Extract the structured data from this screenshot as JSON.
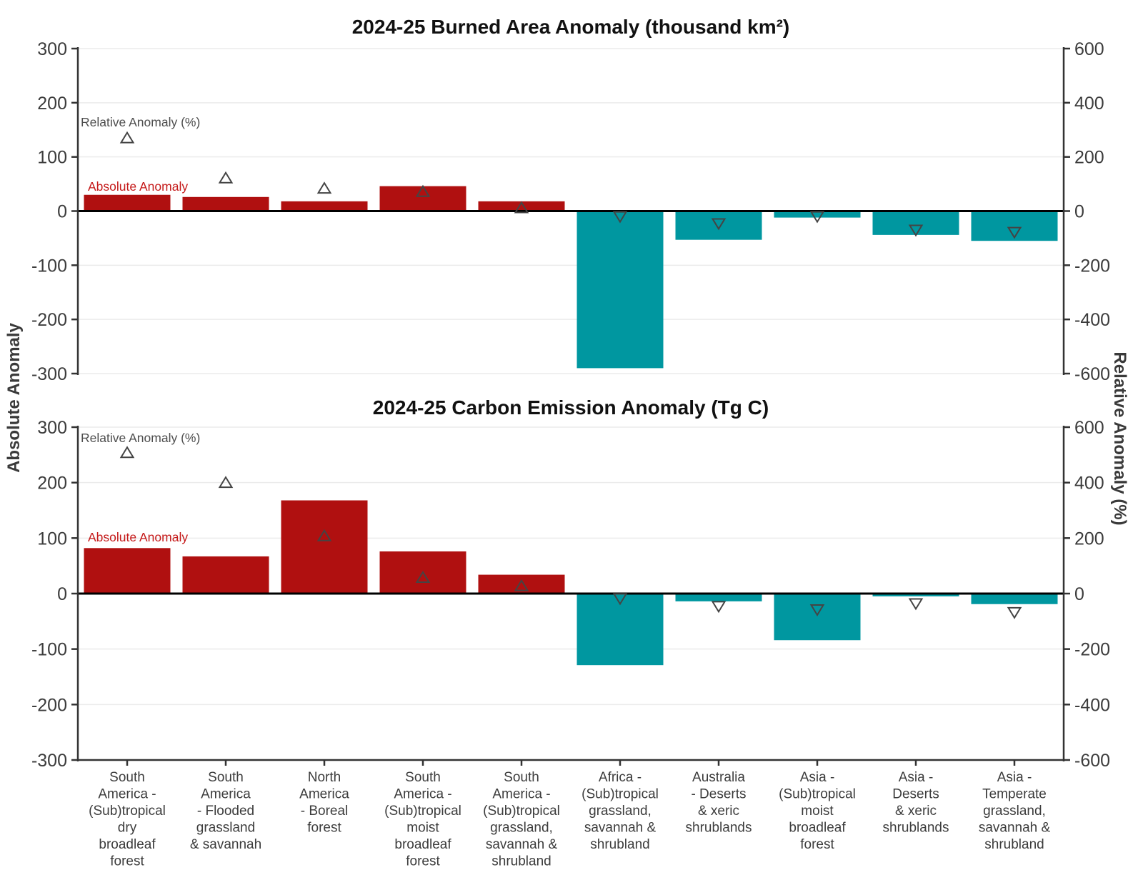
{
  "figure": {
    "left_axis_label": "Absolute Anomaly",
    "right_axis_label": "Relative Anomaly (%)"
  },
  "colors": {
    "positive_bar": "#B01010",
    "negative_bar": "#0097A0",
    "marker_stroke": "#444444",
    "grid": "#EBEBEB",
    "axis": "#333333",
    "tick_label": "#3C3C3C",
    "title": "#111111",
    "legend_relative_text": "#4D4D4D",
    "legend_absolute_text": "#C51A1A",
    "background": "#FFFFFF"
  },
  "categories": [
    [
      "South",
      "America -",
      "(Sub)tropical",
      "dry",
      "broadleaf",
      "forest"
    ],
    [
      "South",
      "America",
      "- Flooded",
      "grassland",
      "& savannah"
    ],
    [
      "North",
      "America",
      "- Boreal",
      "forest"
    ],
    [
      "South",
      "America -",
      "(Sub)tropical",
      "moist",
      "broadleaf",
      "forest"
    ],
    [
      "South",
      "America -",
      "(Sub)tropical",
      "grassland,",
      "savannah &",
      "shrubland"
    ],
    [
      "Africa -",
      "(Sub)tropical",
      "grassland,",
      "savannah &",
      "shrubland"
    ],
    [
      "Australia",
      "- Deserts",
      "& xeric",
      "shrublands"
    ],
    [
      "Asia -",
      "(Sub)tropical",
      "moist",
      "broadleaf",
      "forest"
    ],
    [
      "Asia -",
      "Deserts",
      "& xeric",
      "shrublands"
    ],
    [
      "Asia -",
      "Temperate",
      "grassland,",
      "savannah &",
      "shrubland"
    ]
  ],
  "chart_data": [
    {
      "type": "bar",
      "title": "2024-25 Burned Area Anomaly (thousand km²)",
      "legend": {
        "relative": "Relative Anomaly (%)",
        "absolute": "Absolute Anomaly"
      },
      "left_axis_ticks": [
        300,
        200,
        100,
        0,
        -100,
        -200,
        -300
      ],
      "right_axis_ticks": [
        600,
        400,
        200,
        0,
        -200,
        -400,
        -600
      ],
      "left_ylim": [
        -300,
        300
      ],
      "right_ylim": [
        -600,
        600
      ],
      "xlabel": "",
      "ylabel_left": "Absolute Anomaly",
      "ylabel_right": "Relative Anomaly (%)",
      "grid": true,
      "series": [
        {
          "name": "Absolute Anomaly",
          "style": "bar",
          "axis": "left",
          "values": [
            30,
            26,
            18,
            46,
            18,
            -290,
            -53,
            -12,
            -44,
            -55
          ]
        },
        {
          "name": "Relative Anomaly (%)",
          "style": "triangle-marker",
          "axis": "right",
          "values": [
            270,
            122,
            84,
            72,
            12,
            -20,
            -46,
            -20,
            -70,
            -78
          ]
        }
      ]
    },
    {
      "type": "bar",
      "title": "2024-25 Carbon Emission Anomaly (Tg C)",
      "legend": {
        "relative": "Relative Anomaly (%)",
        "absolute": "Absolute Anomaly"
      },
      "left_axis_ticks": [
        300,
        200,
        100,
        0,
        -100,
        -200,
        -300
      ],
      "right_axis_ticks": [
        600,
        400,
        200,
        0,
        -200,
        -400,
        -600
      ],
      "left_ylim": [
        -300,
        300
      ],
      "right_ylim": [
        -600,
        600
      ],
      "xlabel": "",
      "ylabel_left": "Absolute Anomaly",
      "ylabel_right": "Relative Anomaly (%)",
      "grid": true,
      "series": [
        {
          "name": "Absolute Anomaly",
          "style": "bar",
          "axis": "left",
          "values": [
            82,
            67,
            168,
            76,
            34,
            -129,
            -14,
            -84,
            -5,
            -19
          ]
        },
        {
          "name": "Relative Anomaly (%)",
          "style": "triangle-marker",
          "axis": "right",
          "values": [
            508,
            400,
            208,
            58,
            28,
            -18,
            -46,
            -58,
            -36,
            -68
          ]
        }
      ]
    }
  ]
}
